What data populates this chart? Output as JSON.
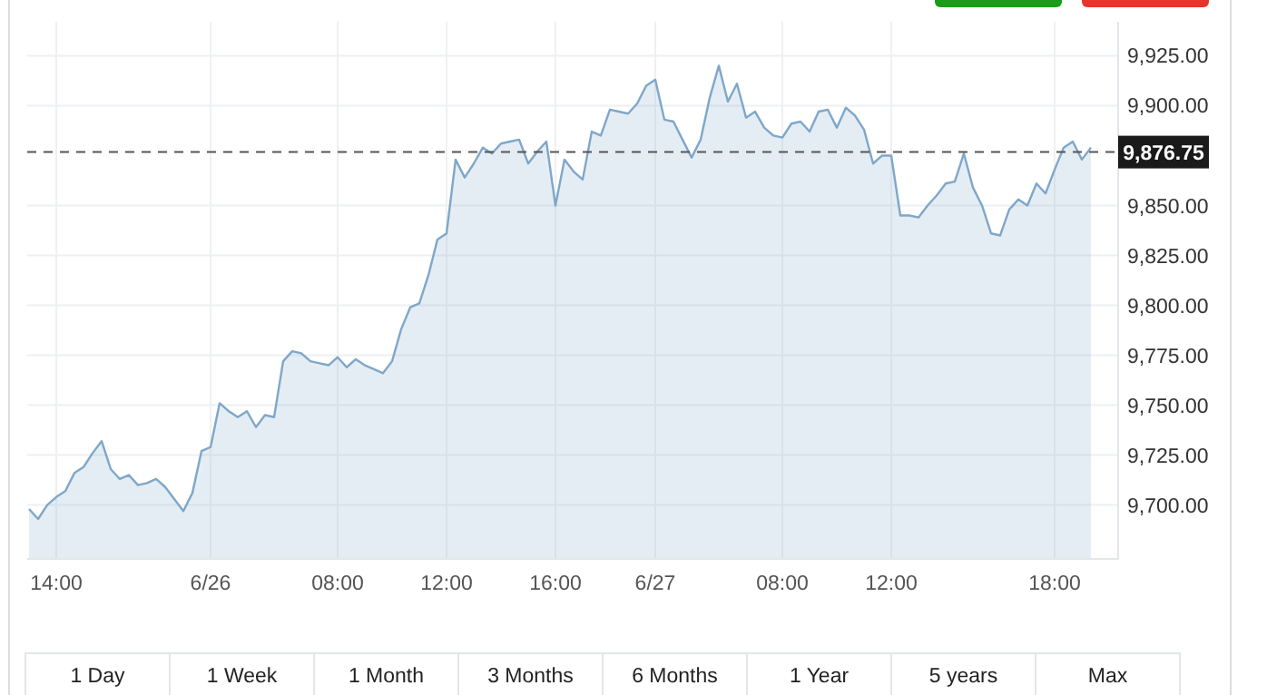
{
  "chart_data": {
    "type": "area",
    "categories": [
      null,
      null,
      null,
      "14:00",
      null,
      null,
      null,
      null,
      null,
      null,
      null,
      null,
      null,
      null,
      null,
      null,
      null,
      null,
      null,
      null,
      "6/26",
      null,
      null,
      null,
      null,
      null,
      null,
      null,
      null,
      null,
      null,
      null,
      null,
      null,
      "08:00",
      null,
      null,
      null,
      null,
      null,
      null,
      null,
      null,
      null,
      null,
      null,
      "12:00",
      null,
      null,
      null,
      null,
      null,
      null,
      null,
      null,
      null,
      null,
      null,
      "16:00",
      null,
      null,
      null,
      null,
      null,
      null,
      null,
      null,
      null,
      null,
      "6/27",
      null,
      null,
      null,
      null,
      null,
      null,
      null,
      null,
      null,
      null,
      null,
      null,
      null,
      "08:00",
      null,
      null,
      null,
      null,
      null,
      null,
      null,
      null,
      null,
      null,
      null,
      "12:00",
      null,
      null,
      null,
      null,
      null,
      null,
      null,
      null,
      null,
      null,
      null,
      null,
      null,
      null,
      null,
      null,
      null,
      "18:00",
      null,
      null,
      null,
      null
    ],
    "values": [
      9698,
      9693,
      9700,
      9704,
      9707,
      9716,
      9719,
      9726,
      9732,
      9718,
      9713,
      9715,
      9710,
      9711,
      9713,
      9709,
      9703,
      9697,
      9706,
      9727,
      9729,
      9751,
      9747,
      9744,
      9747,
      9739,
      9745,
      9744,
      9772,
      9777,
      9776,
      9772,
      9771,
      9770,
      9774,
      9769,
      9773,
      9770,
      9768,
      9766,
      9772,
      9788,
      9799,
      9801,
      9815,
      9833,
      9836,
      9873,
      9864,
      9871,
      9879,
      9876,
      9881,
      9882,
      9883,
      9871,
      9877,
      9882,
      9850,
      9873,
      9867,
      9863,
      9887,
      9885,
      9898,
      9897,
      9896,
      9901,
      9910,
      9913,
      9893,
      9892,
      9883,
      9874,
      9883,
      9904,
      9920,
      9902,
      9911,
      9894,
      9897,
      9889,
      9885,
      9884,
      9891,
      9892,
      9887,
      9897,
      9898,
      9889,
      9899,
      9895,
      9888,
      9871,
      9875,
      9875,
      9845,
      9845,
      9844,
      9850,
      9855,
      9861,
      9862,
      9876,
      9859,
      9850,
      9836,
      9835,
      9848,
      9853,
      9850,
      9861,
      9856,
      9868,
      9879,
      9882,
      9873,
      9879
    ],
    "color": "#7fa7c9",
    "ylim": [
      9673,
      9942
    ],
    "yticks": [
      {
        "value": 9700,
        "label": "9,700.00"
      },
      {
        "value": 9725,
        "label": "9,725.00"
      },
      {
        "value": 9750,
        "label": "9,750.00"
      },
      {
        "value": 9775,
        "label": "9,775.00"
      },
      {
        "value": 9800,
        "label": "9,800.00"
      },
      {
        "value": 9825,
        "label": "9,825.00"
      },
      {
        "value": 9850,
        "label": "9,850.00"
      },
      {
        "value": 9900,
        "label": "9,900.00"
      },
      {
        "value": 9925,
        "label": "9,925.00"
      }
    ],
    "grid": true,
    "ref_lines": [
      {
        "axis": "y",
        "value": 9876.75,
        "label": "9,876.75",
        "color": "#555555",
        "line_style": "dashed"
      }
    ],
    "annotations": [
      "1 Day",
      "1 Week",
      "1 Month",
      "3 Months",
      "6 Months",
      "1 Year",
      "5 years",
      "Max"
    ]
  }
}
